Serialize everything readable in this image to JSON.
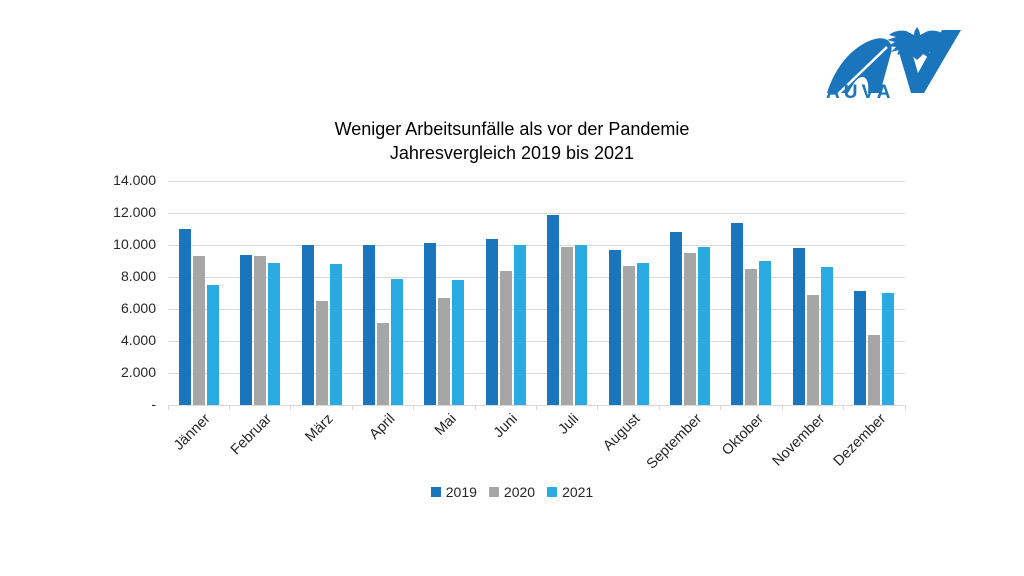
{
  "page": {
    "background": "#ffffff"
  },
  "logo": {
    "text": "AUVA",
    "color": "#1b75bc",
    "eagle_icon": "eagle-icon"
  },
  "title": {
    "line1": "Weniger Arbeitsunfälle als vor der Pandemie",
    "line2": "Jahresvergleich 2019 bis 2021"
  },
  "chart_data": {
    "type": "bar",
    "title": "Weniger Arbeitsunfälle als vor der Pandemie",
    "subtitle": "Jahresvergleich 2019 bis 2021",
    "categories": [
      "Jänner",
      "Februar",
      "März",
      "April",
      "Mai",
      "Juni",
      "Juli",
      "August",
      "September",
      "Oktober",
      "November",
      "Dezember"
    ],
    "series": [
      {
        "name": "2019",
        "color": "#1b75bc",
        "values": [
          11000,
          9400,
          10000,
          10000,
          10100,
          10400,
          11900,
          9700,
          10800,
          11400,
          9800,
          7100
        ]
      },
      {
        "name": "2020",
        "color": "#a6a6a6",
        "values": [
          9300,
          9300,
          6500,
          5100,
          6700,
          8400,
          9900,
          8700,
          9500,
          8500,
          6900,
          4400
        ]
      },
      {
        "name": "2021",
        "color": "#29abe2",
        "values": [
          7500,
          8900,
          8800,
          7900,
          7800,
          10000,
          10000,
          8900,
          9900,
          9000,
          8600,
          7000
        ]
      }
    ],
    "xlabel": "",
    "ylabel": "",
    "ylim": [
      0,
      14000
    ],
    "y_ticks": [
      "14.000",
      "12.000",
      "10.000",
      "8.000",
      "6.000",
      "4.000",
      "2.000",
      "-"
    ],
    "grid": "horizontal",
    "gridline_color": "#d9d9d9",
    "legend_position": "bottom"
  }
}
